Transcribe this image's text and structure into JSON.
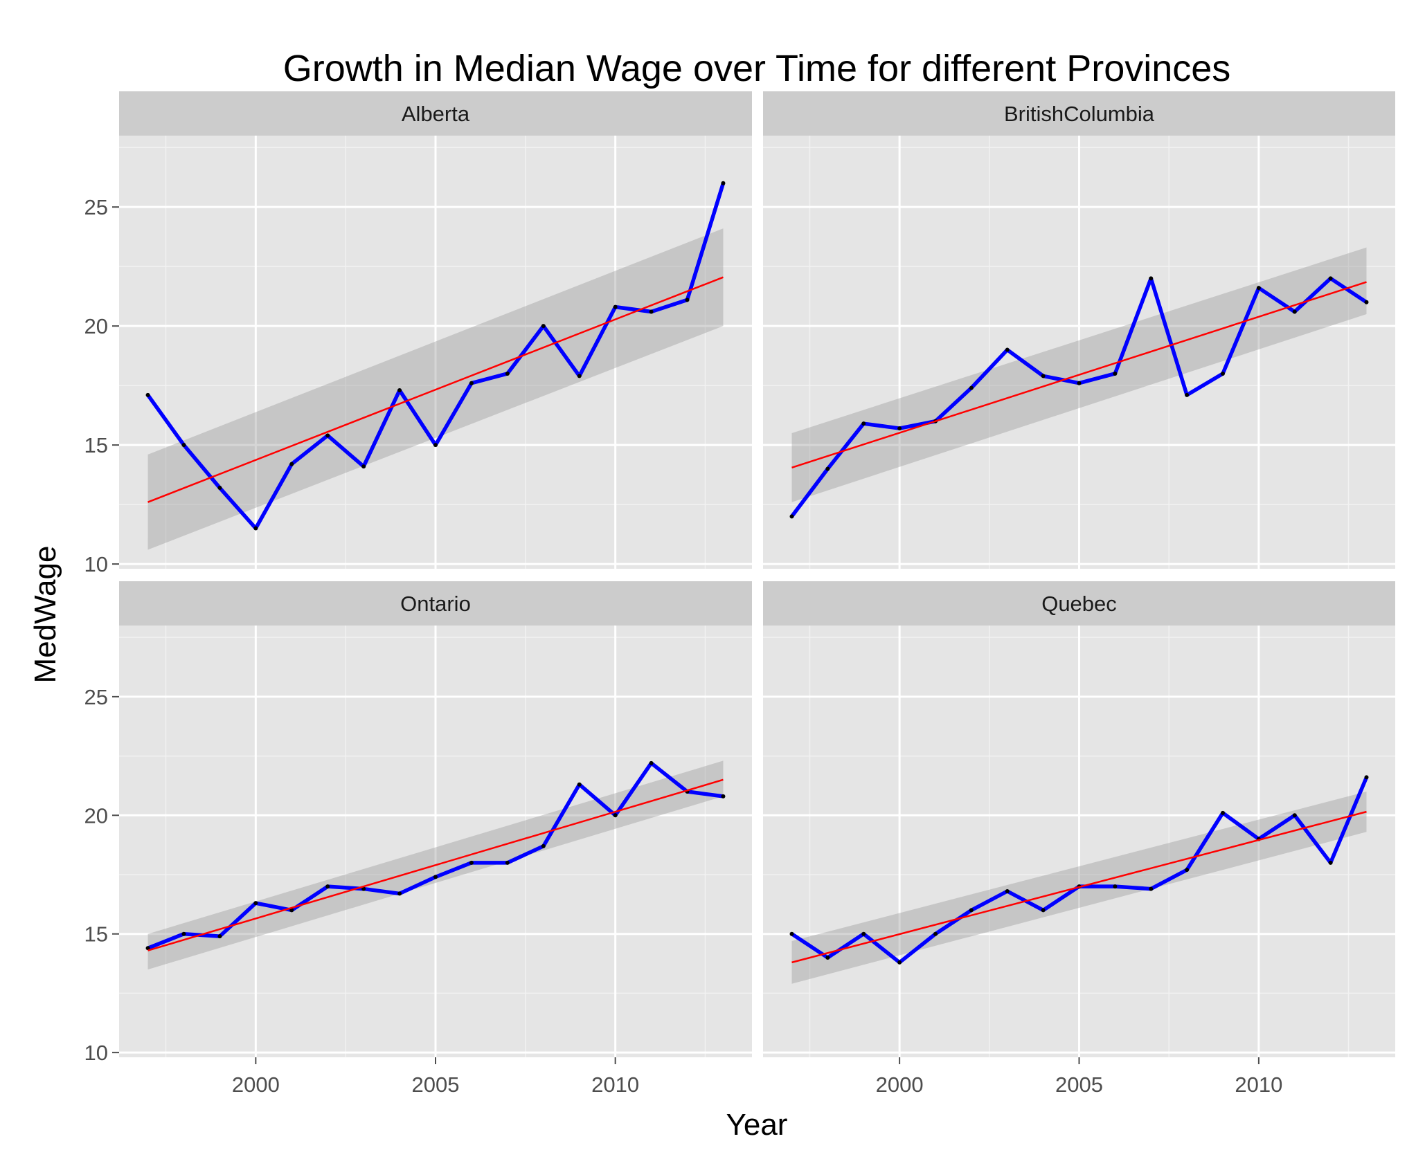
{
  "chart_data": {
    "type": "line",
    "title": "Growth in Median Wage over Time for different Provinces",
    "xlabel": "Year",
    "ylabel": "MedWage",
    "xlim": [
      1996.2,
      2013.8
    ],
    "ylim": [
      9.8,
      28.0
    ],
    "x_ticks": [
      2000,
      2005,
      2010
    ],
    "y_ticks": [
      10,
      15,
      20,
      25
    ],
    "grid": true,
    "legend": "none",
    "colors": {
      "series_line": "#0000ff",
      "trend_line": "#ff0000",
      "confidence_band": "#999999",
      "panel_background": "#e5e5e5",
      "strip_background": "#cccccc",
      "grid": "#ffffff"
    },
    "panels": [
      {
        "name": "Alberta",
        "x": [
          1997,
          1998,
          1999,
          2000,
          2001,
          2002,
          2003,
          2004,
          2005,
          2006,
          2007,
          2008,
          2009,
          2010,
          2011,
          2012,
          2013
        ],
        "values": [
          17.1,
          15.0,
          13.2,
          11.5,
          14.2,
          15.4,
          14.1,
          17.3,
          15.0,
          17.6,
          18.0,
          20.0,
          17.9,
          20.8,
          20.6,
          21.1,
          26.0
        ],
        "trend": [
          12.6,
          22.05
        ],
        "band_start": [
          10.6,
          14.6
        ],
        "band_end": [
          20.0,
          24.1
        ]
      },
      {
        "name": "BritishColumbia",
        "x": [
          1997,
          1998,
          1999,
          2000,
          2001,
          2002,
          2003,
          2004,
          2005,
          2006,
          2007,
          2008,
          2009,
          2010,
          2011,
          2012,
          2013
        ],
        "values": [
          12.0,
          14.0,
          15.9,
          15.7,
          16.0,
          17.4,
          19.0,
          17.9,
          17.6,
          18.0,
          22.0,
          17.1,
          18.0,
          21.6,
          20.6,
          22.0,
          21.0
        ],
        "trend": [
          14.05,
          21.85
        ],
        "band_start": [
          12.6,
          15.5
        ],
        "band_end": [
          20.5,
          23.3
        ]
      },
      {
        "name": "Ontario",
        "x": [
          1997,
          1998,
          1999,
          2000,
          2001,
          2002,
          2003,
          2004,
          2005,
          2006,
          2007,
          2008,
          2009,
          2010,
          2011,
          2012,
          2013
        ],
        "values": [
          14.4,
          15.0,
          14.9,
          16.3,
          16.0,
          17.0,
          16.9,
          16.7,
          17.4,
          18.0,
          18.0,
          18.7,
          21.3,
          20.0,
          22.2,
          21.0,
          20.8
        ],
        "trend": [
          14.3,
          21.5
        ],
        "band_start": [
          13.5,
          15.0
        ],
        "band_end": [
          20.8,
          22.3
        ]
      },
      {
        "name": "Quebec",
        "x": [
          1997,
          1998,
          1999,
          2000,
          2001,
          2002,
          2003,
          2004,
          2005,
          2006,
          2007,
          2008,
          2009,
          2010,
          2011,
          2012,
          2013
        ],
        "values": [
          15.0,
          14.0,
          15.0,
          13.8,
          15.0,
          16.0,
          16.8,
          16.0,
          17.0,
          17.0,
          16.9,
          17.7,
          20.1,
          19.0,
          20.0,
          18.0,
          21.6
        ],
        "trend": [
          13.8,
          20.15
        ],
        "band_start": [
          12.9,
          14.7
        ],
        "band_end": [
          19.3,
          21.0
        ]
      }
    ]
  }
}
